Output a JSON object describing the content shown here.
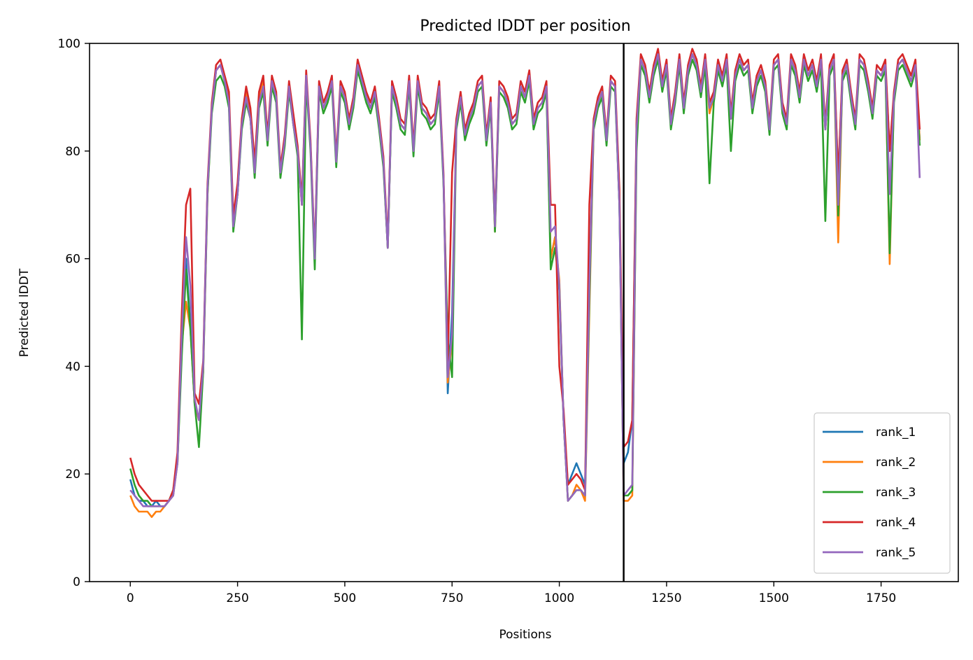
{
  "chart_data": {
    "type": "line",
    "title": "Predicted lDDT per position",
    "xlabel": "Positions",
    "ylabel": "Predicted lDDT",
    "xlim": [
      -95,
      1930
    ],
    "ylim": [
      0,
      100
    ],
    "xticks": [
      "0",
      "250",
      "500",
      "750",
      "1000",
      "1250",
      "1500",
      "1750"
    ],
    "yticks": [
      "0",
      "20",
      "40",
      "60",
      "80",
      "100"
    ],
    "grid": false,
    "legend_position": "lower-right",
    "chain_boundary_x": 1150,
    "x_start": 0,
    "x_step": 10,
    "series": [
      {
        "name": "rank_1",
        "color": "#1f77b4",
        "values": [
          19,
          16,
          15,
          15,
          14,
          14,
          15,
          14,
          14,
          15,
          16,
          23,
          45,
          60,
          48,
          33,
          30,
          40,
          73,
          88,
          95,
          96,
          93,
          89,
          66,
          72,
          85,
          90,
          86,
          76,
          89,
          92,
          82,
          93,
          90,
          76,
          82,
          92,
          85,
          80,
          70,
          94,
          81,
          60,
          92,
          88,
          90,
          93,
          78,
          92,
          90,
          85,
          89,
          96,
          93,
          90,
          88,
          91,
          85,
          78,
          62,
          92,
          89,
          85,
          84,
          93,
          80,
          93,
          88,
          87,
          85,
          86,
          92,
          75,
          35,
          50,
          85,
          90,
          83,
          86,
          88,
          92,
          93,
          82,
          89,
          66,
          92,
          91,
          89,
          85,
          86,
          92,
          90,
          94,
          85,
          88,
          89,
          92,
          60,
          64,
          54,
          30,
          18,
          20,
          22,
          20,
          18,
          55,
          85,
          89,
          91,
          82,
          93,
          92,
          70,
          22,
          24,
          30,
          85,
          97,
          95,
          90,
          95,
          98,
          92,
          96,
          85,
          90,
          97,
          88,
          95,
          98,
          96,
          91,
          97,
          88,
          90,
          96,
          93,
          97,
          86,
          94,
          97,
          95,
          96,
          88,
          93,
          95,
          92,
          84,
          96,
          97,
          88,
          85,
          97,
          95,
          90,
          97,
          94,
          96,
          92,
          97,
          84,
          95,
          97,
          75,
          94,
          96,
          90,
          85,
          97,
          96,
          92,
          87,
          95,
          94,
          96,
          80,
          90,
          96,
          97,
          95,
          93,
          96,
          82
        ],
        "labels_note": ""
      },
      {
        "name": "rank_2",
        "color": "#ff7f0e",
        "values": [
          16,
          14,
          13,
          13,
          13,
          12,
          13,
          13,
          14,
          15,
          16,
          22,
          44,
          52,
          47,
          33,
          30,
          39,
          72,
          88,
          95,
          96,
          93,
          90,
          66,
          73,
          85,
          91,
          87,
          77,
          90,
          93,
          82,
          93,
          90,
          76,
          82,
          92,
          86,
          80,
          70,
          94,
          81,
          60,
          92,
          88,
          90,
          93,
          78,
          92,
          90,
          85,
          89,
          96,
          93,
          90,
          88,
          91,
          85,
          78,
          62,
          92,
          89,
          85,
          84,
          93,
          80,
          93,
          88,
          87,
          85,
          86,
          92,
          75,
          37,
          45,
          85,
          90,
          83,
          86,
          88,
          92,
          93,
          82,
          89,
          65,
          92,
          91,
          89,
          85,
          86,
          92,
          90,
          94,
          85,
          88,
          89,
          92,
          60,
          64,
          56,
          30,
          15,
          16,
          18,
          17,
          15,
          50,
          84,
          89,
          91,
          82,
          93,
          92,
          72,
          15,
          15,
          16,
          82,
          97,
          95,
          90,
          95,
          98,
          92,
          96,
          85,
          90,
          97,
          88,
          95,
          98,
          96,
          91,
          97,
          87,
          90,
          96,
          93,
          97,
          86,
          94,
          97,
          95,
          96,
          88,
          93,
          95,
          92,
          84,
          96,
          97,
          88,
          85,
          97,
          95,
          90,
          97,
          94,
          96,
          92,
          97,
          84,
          95,
          97,
          63,
          94,
          96,
          90,
          85,
          97,
          96,
          92,
          87,
          95,
          94,
          96,
          59,
          90,
          96,
          97,
          95,
          93,
          96,
          82
        ],
        "labels_note": ""
      },
      {
        "name": "rank_3",
        "color": "#2ca02c",
        "values": [
          21,
          18,
          16,
          15,
          15,
          14,
          14,
          14,
          14,
          15,
          17,
          22,
          42,
          58,
          47,
          33,
          25,
          39,
          72,
          87,
          93,
          94,
          92,
          88,
          65,
          72,
          84,
          89,
          86,
          75,
          88,
          91,
          81,
          92,
          89,
          75,
          81,
          91,
          85,
          79,
          45,
          93,
          80,
          58,
          91,
          87,
          89,
          92,
          77,
          91,
          89,
          84,
          88,
          95,
          92,
          89,
          87,
          90,
          84,
          77,
          62,
          91,
          88,
          84,
          83,
          92,
          79,
          92,
          87,
          86,
          84,
          85,
          91,
          74,
          45,
          38,
          84,
          89,
          82,
          85,
          87,
          91,
          92,
          81,
          88,
          65,
          91,
          90,
          88,
          84,
          85,
          91,
          89,
          93,
          84,
          87,
          88,
          91,
          58,
          62,
          55,
          30,
          15,
          16,
          17,
          17,
          16,
          52,
          84,
          88,
          90,
          81,
          92,
          91,
          70,
          16,
          16,
          17,
          80,
          96,
          94,
          89,
          94,
          97,
          91,
          95,
          84,
          89,
          96,
          87,
          94,
          97,
          95,
          90,
          96,
          74,
          89,
          95,
          92,
          96,
          80,
          93,
          96,
          94,
          95,
          87,
          92,
          94,
          91,
          83,
          95,
          96,
          87,
          84,
          96,
          94,
          89,
          96,
          93,
          95,
          91,
          96,
          67,
          94,
          96,
          68,
          93,
          95,
          89,
          84,
          96,
          95,
          91,
          86,
          94,
          93,
          95,
          61,
          89,
          95,
          96,
          94,
          92,
          95,
          81
        ],
        "labels_note": ""
      },
      {
        "name": "rank_4",
        "color": "#d62728",
        "values": [
          23,
          20,
          18,
          17,
          16,
          15,
          15,
          15,
          15,
          15,
          17,
          24,
          50,
          70,
          73,
          35,
          33,
          41,
          74,
          89,
          96,
          97,
          94,
          91,
          68,
          74,
          86,
          92,
          88,
          78,
          91,
          94,
          83,
          94,
          91,
          77,
          83,
          93,
          87,
          81,
          71,
          95,
          82,
          61,
          93,
          89,
          91,
          94,
          79,
          93,
          91,
          86,
          90,
          97,
          94,
          91,
          89,
          92,
          86,
          79,
          63,
          93,
          90,
          86,
          85,
          94,
          81,
          94,
          89,
          88,
          86,
          87,
          93,
          76,
          40,
          76,
          86,
          91,
          84,
          87,
          89,
          93,
          94,
          83,
          90,
          67,
          93,
          92,
          90,
          86,
          87,
          93,
          91,
          95,
          86,
          89,
          90,
          93,
          70,
          70,
          40,
          32,
          18,
          19,
          20,
          19,
          17,
          70,
          86,
          90,
          92,
          83,
          94,
          93,
          73,
          25,
          26,
          30,
          86,
          98,
          96,
          91,
          96,
          99,
          93,
          97,
          86,
          91,
          98,
          89,
          96,
          99,
          97,
          92,
          98,
          89,
          91,
          97,
          94,
          98,
          87,
          95,
          98,
          96,
          97,
          89,
          94,
          96,
          93,
          85,
          97,
          98,
          89,
          86,
          98,
          96,
          91,
          98,
          95,
          97,
          93,
          98,
          85,
          96,
          98,
          75,
          95,
          97,
          91,
          86,
          98,
          97,
          93,
          88,
          96,
          95,
          97,
          80,
          91,
          97,
          98,
          96,
          94,
          97,
          84
        ],
        "labels_note": ""
      },
      {
        "name": "rank_5",
        "color": "#9467bd",
        "values": [
          17,
          16,
          15,
          14,
          14,
          14,
          14,
          14,
          14,
          15,
          16,
          22,
          46,
          64,
          55,
          34,
          30,
          40,
          73,
          88,
          95,
          96,
          93,
          89,
          66,
          72,
          85,
          90,
          86,
          76,
          89,
          92,
          82,
          93,
          90,
          76,
          82,
          92,
          85,
          80,
          70,
          94,
          81,
          60,
          92,
          88,
          90,
          93,
          78,
          92,
          90,
          85,
          89,
          96,
          93,
          90,
          88,
          91,
          85,
          78,
          62,
          92,
          89,
          85,
          84,
          93,
          80,
          93,
          88,
          87,
          85,
          86,
          92,
          75,
          38,
          46,
          85,
          90,
          83,
          86,
          88,
          92,
          93,
          82,
          89,
          66,
          92,
          91,
          89,
          85,
          86,
          92,
          90,
          94,
          85,
          88,
          89,
          92,
          65,
          66,
          55,
          30,
          15,
          16,
          17,
          17,
          16,
          55,
          85,
          89,
          91,
          82,
          93,
          92,
          70,
          16,
          17,
          18,
          84,
          97,
          95,
          90,
          95,
          98,
          92,
          96,
          85,
          90,
          97,
          88,
          95,
          98,
          96,
          91,
          97,
          88,
          90,
          96,
          93,
          97,
          86,
          94,
          97,
          95,
          96,
          88,
          93,
          95,
          92,
          84,
          96,
          97,
          88,
          85,
          97,
          95,
          90,
          97,
          94,
          96,
          92,
          97,
          84,
          95,
          97,
          70,
          94,
          96,
          90,
          85,
          97,
          96,
          92,
          87,
          95,
          94,
          96,
          72,
          90,
          96,
          97,
          95,
          93,
          96,
          75
        ],
        "labels_note": ""
      }
    ]
  }
}
